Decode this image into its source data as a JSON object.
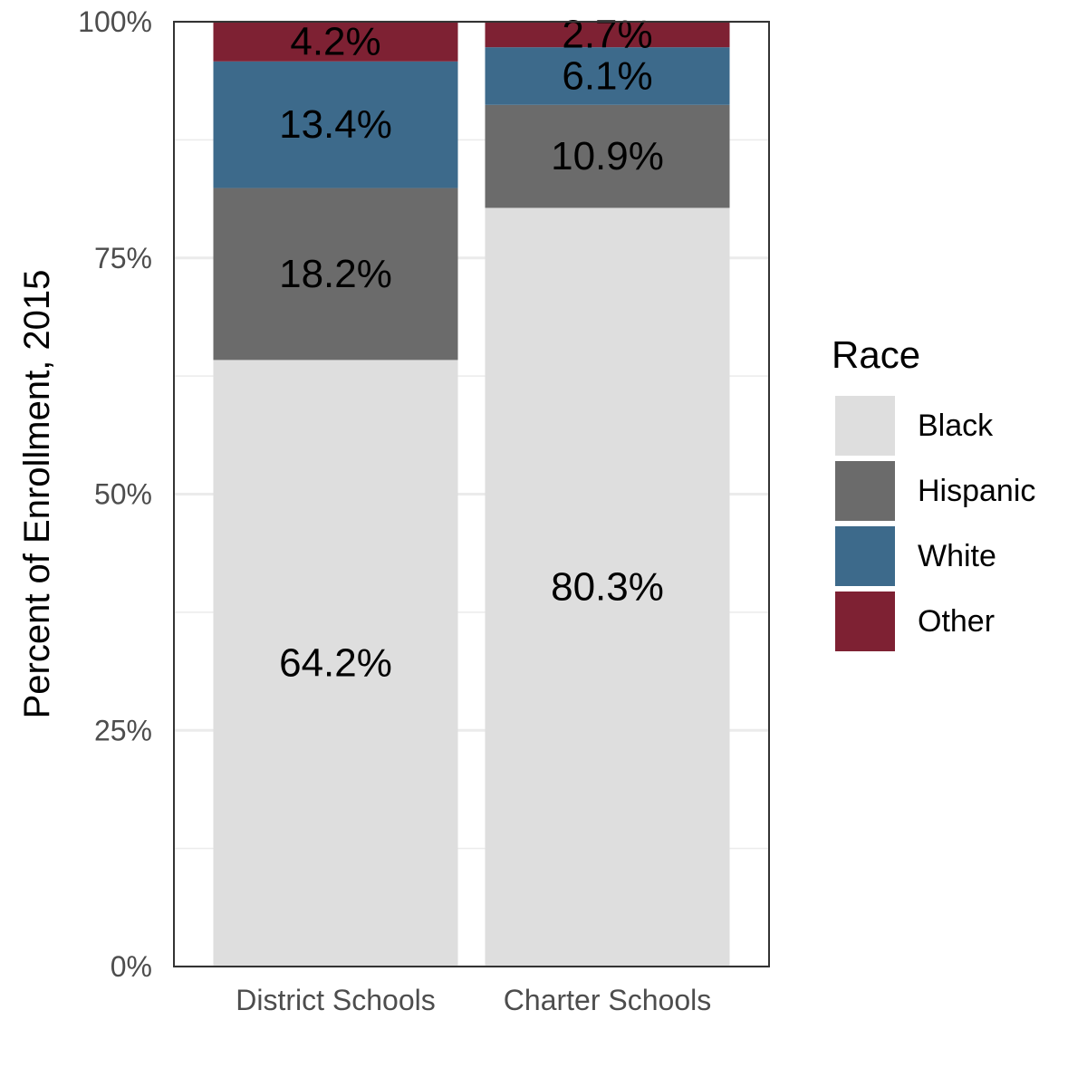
{
  "chart_data": {
    "type": "bar",
    "stacked": true,
    "categories": [
      "District Schools",
      "Charter Schools"
    ],
    "series": [
      {
        "name": "Black",
        "values": [
          64.2,
          80.3
        ],
        "labels": [
          "64.2%",
          "80.3%"
        ],
        "color": "#dedede"
      },
      {
        "name": "Hispanic",
        "values": [
          18.2,
          10.9
        ],
        "labels": [
          "18.2%",
          "10.9%"
        ],
        "color": "#6b6b6b"
      },
      {
        "name": "White",
        "values": [
          13.4,
          6.1
        ],
        "labels": [
          "13.4%",
          "6.1%"
        ],
        "color": "#3d6a8b"
      },
      {
        "name": "Other",
        "values": [
          4.2,
          2.7
        ],
        "labels": [
          "4.2%",
          "2.7%"
        ],
        "color": "#7e2133"
      }
    ],
    "ylabel": "Percent of Enrollment, 2015",
    "xlabel": "",
    "ylim": [
      0,
      100
    ],
    "yticks": [
      0,
      25,
      50,
      75,
      100
    ],
    "ytick_labels": [
      "0%",
      "25%",
      "50%",
      "75%",
      "100%"
    ],
    "legend": {
      "title": "Race",
      "placement": "right"
    },
    "grid": true
  }
}
